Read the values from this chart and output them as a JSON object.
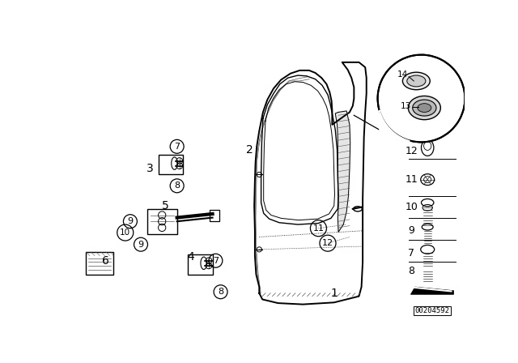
{
  "background_color": "#ffffff",
  "diagram_id": "00204592",
  "black": "#000000",
  "gray": "#888888",
  "darkgray": "#555555"
}
